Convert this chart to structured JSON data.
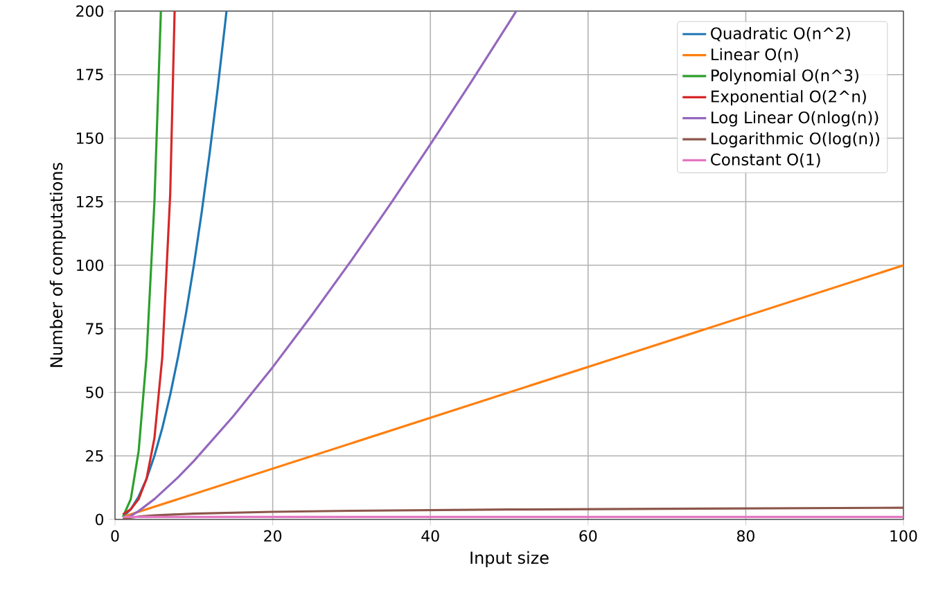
{
  "chart_data": {
    "type": "line",
    "xlabel": "Input size",
    "ylabel": "Number of computations",
    "xlim": [
      0,
      100
    ],
    "ylim": [
      0,
      200
    ],
    "xticks": [
      0,
      20,
      40,
      60,
      80,
      100
    ],
    "yticks": [
      0,
      25,
      50,
      75,
      100,
      125,
      150,
      175,
      200
    ],
    "grid": true,
    "legend": "top right",
    "marker": "none",
    "line_style": "solid",
    "series": [
      {
        "name": "Quadratic O(n^2)",
        "color": "#1f77b4",
        "x": [
          1,
          2,
          3,
          4,
          5,
          6,
          7,
          8,
          9,
          10,
          11,
          12,
          13,
          14,
          14.14
        ],
        "values": [
          1,
          4,
          9,
          16,
          25,
          36,
          49,
          64,
          81,
          100,
          121,
          144,
          169,
          196,
          200
        ]
      },
      {
        "name": "Linear O(n)",
        "color": "#ff7f0e",
        "x": [
          1,
          100
        ],
        "values": [
          1,
          100
        ]
      },
      {
        "name": "Polynomial O(n^3)",
        "color": "#2ca02c",
        "x": [
          1,
          2,
          3,
          4,
          5,
          5.82
        ],
        "values": [
          1,
          8,
          27,
          64,
          125,
          200
        ]
      },
      {
        "name": "Exponential O(2^n)",
        "color": "#d62728",
        "x": [
          1,
          2,
          3,
          4,
          5,
          6,
          7,
          7.56
        ],
        "values": [
          2,
          4,
          8,
          16,
          32,
          64,
          128,
          200
        ]
      },
      {
        "name": "Log Linear O(nlog(n))",
        "color": "#9467bd",
        "x": [
          1,
          2,
          3,
          5,
          8,
          10,
          15,
          20,
          25,
          30,
          35,
          40,
          45,
          50,
          50.89
        ],
        "values": [
          0,
          1.4,
          3.3,
          8,
          16.6,
          23,
          40.6,
          59.9,
          80.5,
          102,
          124.4,
          147.6,
          171.3,
          195.6,
          200
        ]
      },
      {
        "name": "Logarithmic O(log(n))",
        "color": "#8c564b",
        "x": [
          1,
          2,
          3,
          5,
          10,
          20,
          30,
          50,
          70,
          100
        ],
        "values": [
          0,
          0.7,
          1.1,
          1.6,
          2.3,
          3,
          3.4,
          3.9,
          4.2,
          4.6
        ]
      },
      {
        "name": "Constant O(1)",
        "color": "#e377c2",
        "x": [
          1,
          100
        ],
        "values": [
          1,
          1
        ]
      }
    ]
  }
}
